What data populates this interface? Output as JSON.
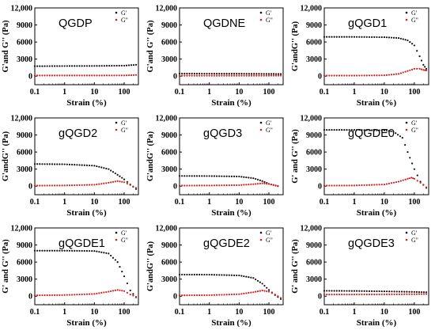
{
  "colors": {
    "gp": "#111111",
    "gpp": "#d62020",
    "axis": "#000000"
  },
  "chart_data": [
    {
      "type": "scatter",
      "title": "QGDP",
      "ylabel": "G'and G'' (Pa)",
      "xlabel": "Strain (%)",
      "xscale": "log",
      "xlim": [
        0.1,
        300
      ],
      "ylim": [
        -1500,
        12000
      ],
      "xticks": [
        "0.1",
        "1",
        "10",
        "100"
      ],
      "yticks": [
        "0",
        "3000",
        "6000",
        "9000",
        "12,000"
      ],
      "legend": [
        "G'",
        "G''"
      ],
      "legend_position": "top-right",
      "series": [
        {
          "name": "G'",
          "kind": "gp",
          "points": [
            [
              0.1,
              1750
            ],
            [
              1,
              1780
            ],
            [
              10,
              1800
            ],
            [
              100,
              1850
            ],
            [
              250,
              2000
            ]
          ]
        },
        {
          "name": "G''",
          "kind": "gpp",
          "points": [
            [
              0.1,
              120
            ],
            [
              1,
              120
            ],
            [
              10,
              120
            ],
            [
              100,
              130
            ],
            [
              250,
              200
            ]
          ]
        }
      ]
    },
    {
      "type": "scatter",
      "title": "QGDNE",
      "ylabel": "G'and G'' (Pa)",
      "xlabel": "Strain (%)",
      "xscale": "log",
      "xlim": [
        0.1,
        300
      ],
      "ylim": [
        -1500,
        12000
      ],
      "xticks": [
        "0.1",
        "1",
        "10",
        "100"
      ],
      "yticks": [
        "0",
        "3000",
        "6000",
        "9000",
        "12,000"
      ],
      "legend": [
        "G'",
        "G''"
      ],
      "legend_position": "top-right",
      "series": [
        {
          "name": "G'",
          "kind": "gp",
          "points": [
            [
              0.1,
              450
            ],
            [
              1,
              440
            ],
            [
              10,
              430
            ],
            [
              100,
              400
            ],
            [
              250,
              380
            ]
          ]
        },
        {
          "name": "G''",
          "kind": "gpp",
          "points": [
            [
              0.1,
              80
            ],
            [
              1,
              80
            ],
            [
              10,
              80
            ],
            [
              100,
              90
            ],
            [
              250,
              100
            ]
          ]
        }
      ]
    },
    {
      "type": "scatter",
      "title": "gQGD1",
      "ylabel": "G'andG'' (Pa)",
      "xlabel": "Strain (%)",
      "xscale": "log",
      "xlim": [
        0.1,
        300
      ],
      "ylim": [
        -1500,
        12000
      ],
      "xticks": [
        "0.1",
        "1",
        "10",
        "100"
      ],
      "yticks": [
        "0",
        "3000",
        "6000",
        "9000",
        "12,000"
      ],
      "legend": [
        "G'",
        "G''"
      ],
      "legend_position": "top-right",
      "series": [
        {
          "name": "G'",
          "kind": "gp",
          "points": [
            [
              0.1,
              6900
            ],
            [
              1,
              6900
            ],
            [
              10,
              6850
            ],
            [
              30,
              6700
            ],
            [
              60,
              6300
            ],
            [
              100,
              5400
            ],
            [
              150,
              3500
            ],
            [
              200,
              2000
            ],
            [
              250,
              1300
            ]
          ]
        },
        {
          "name": "G''",
          "kind": "gpp",
          "points": [
            [
              0.1,
              100
            ],
            [
              1,
              100
            ],
            [
              10,
              150
            ],
            [
              30,
              400
            ],
            [
              60,
              900
            ],
            [
              100,
              1300
            ],
            [
              150,
              1300
            ],
            [
              200,
              1100
            ],
            [
              250,
              1000
            ]
          ]
        }
      ]
    },
    {
      "type": "scatter",
      "title": "gQGD2",
      "ylabel": "G'andG'' (Pa)",
      "xlabel": "Strain (%)",
      "xscale": "log",
      "xlim": [
        0.1,
        300
      ],
      "ylim": [
        -1500,
        12000
      ],
      "xticks": [
        "0.1",
        "1",
        "10",
        "100"
      ],
      "yticks": [
        "0",
        "3000",
        "6000",
        "9000",
        "12,000"
      ],
      "legend": [
        "G'",
        "G''"
      ],
      "legend_position": "top-right",
      "series": [
        {
          "name": "G'",
          "kind": "gp",
          "points": [
            [
              0.1,
              3900
            ],
            [
              1,
              3850
            ],
            [
              10,
              3600
            ],
            [
              30,
              3000
            ],
            [
              60,
              2000
            ],
            [
              100,
              1200
            ],
            [
              160,
              300
            ],
            [
              250,
              -500
            ]
          ]
        },
        {
          "name": "G''",
          "kind": "gpp",
          "points": [
            [
              0.1,
              100
            ],
            [
              1,
              120
            ],
            [
              10,
              250
            ],
            [
              30,
              600
            ],
            [
              60,
              900
            ],
            [
              100,
              700
            ],
            [
              160,
              200
            ],
            [
              250,
              -300
            ]
          ]
        }
      ]
    },
    {
      "type": "scatter",
      "title": "gQGD3",
      "ylabel": "G'andG'' (Pa)",
      "xlabel": "Strain (%)",
      "xscale": "log",
      "xlim": [
        0.1,
        300
      ],
      "ylim": [
        -1500,
        12000
      ],
      "xticks": [
        "0.1",
        "1",
        "10",
        "100"
      ],
      "yticks": [
        "0",
        "3000",
        "6000",
        "9000",
        "12,000"
      ],
      "legend": [
        "G'",
        "G''"
      ],
      "legend_position": "top-right",
      "series": [
        {
          "name": "G'",
          "kind": "gp",
          "points": [
            [
              0.1,
              1800
            ],
            [
              1,
              1780
            ],
            [
              10,
              1700
            ],
            [
              30,
              1400
            ],
            [
              60,
              900
            ],
            [
              100,
              400
            ],
            [
              200,
              0
            ]
          ]
        },
        {
          "name": "G''",
          "kind": "gpp",
          "points": [
            [
              0.1,
              100
            ],
            [
              1,
              120
            ],
            [
              10,
              180
            ],
            [
              30,
              350
            ],
            [
              60,
              500
            ],
            [
              100,
              400
            ],
            [
              200,
              50
            ]
          ]
        }
      ]
    },
    {
      "type": "scatter",
      "title": "gQGDE0",
      "ylabel": "G' and G'' (Pa)",
      "xlabel": "Strain (%)",
      "xscale": "log",
      "xlim": [
        0.1,
        300
      ],
      "ylim": [
        -1500,
        12000
      ],
      "xticks": [
        "0.1",
        "1",
        "10",
        "100"
      ],
      "yticks": [
        "0",
        "3000",
        "6000",
        "9000",
        "12,000"
      ],
      "legend": [
        "G'",
        "G''"
      ],
      "legend_position": "top-right",
      "series": [
        {
          "name": "G'",
          "kind": "gp",
          "points": [
            [
              0.1,
              9900
            ],
            [
              1,
              9900
            ],
            [
              10,
              9800
            ],
            [
              20,
              9600
            ],
            [
              40,
              8500
            ],
            [
              60,
              6000
            ],
            [
              100,
              3000
            ],
            [
              160,
              800
            ],
            [
              250,
              -300
            ]
          ]
        },
        {
          "name": "G''",
          "kind": "gpp",
          "points": [
            [
              0.1,
              100
            ],
            [
              1,
              120
            ],
            [
              10,
              300
            ],
            [
              30,
              800
            ],
            [
              60,
              1300
            ],
            [
              80,
              1500
            ],
            [
              100,
              1300
            ],
            [
              160,
              600
            ],
            [
              250,
              -200
            ]
          ]
        }
      ]
    },
    {
      "type": "scatter",
      "title": "gQGDE1",
      "ylabel": "G' and G'' (Pa)",
      "xlabel": "Strain (%)",
      "xscale": "log",
      "xlim": [
        0.1,
        300
      ],
      "ylim": [
        -1500,
        12000
      ],
      "xticks": [
        "0.1",
        "1",
        "10",
        "100"
      ],
      "yticks": [
        "0",
        "3000",
        "6000",
        "9000",
        "12,000"
      ],
      "legend": [
        "G'",
        "G''"
      ],
      "legend_position": "top-right",
      "series": [
        {
          "name": "G'",
          "kind": "gp",
          "points": [
            [
              0.1,
              8000
            ],
            [
              1,
              8000
            ],
            [
              10,
              7950
            ],
            [
              30,
              7500
            ],
            [
              60,
              6000
            ],
            [
              100,
              3500
            ],
            [
              160,
              1000
            ],
            [
              250,
              -200
            ]
          ]
        },
        {
          "name": "G''",
          "kind": "gpp",
          "points": [
            [
              0.1,
              150
            ],
            [
              1,
              200
            ],
            [
              10,
              400
            ],
            [
              30,
              800
            ],
            [
              60,
              1100
            ],
            [
              100,
              900
            ],
            [
              160,
              300
            ],
            [
              250,
              -100
            ]
          ]
        }
      ]
    },
    {
      "type": "scatter",
      "title": "gQGDE2",
      "ylabel": "G'andG'' (Pa)",
      "xlabel": "Strain (%)",
      "xscale": "log",
      "xlim": [
        0.1,
        300
      ],
      "ylim": [
        -1500,
        12000
      ],
      "xticks": [
        "0.1",
        "1",
        "10",
        "100"
      ],
      "yticks": [
        "0",
        "3000",
        "6000",
        "9000",
        "12,000"
      ],
      "legend": [
        "G'",
        "G''"
      ],
      "legend_position": "top-right",
      "series": [
        {
          "name": "G'",
          "kind": "gp",
          "points": [
            [
              0.1,
              3800
            ],
            [
              1,
              3780
            ],
            [
              10,
              3650
            ],
            [
              30,
              3200
            ],
            [
              60,
              2200
            ],
            [
              100,
              1100
            ],
            [
              160,
              200
            ],
            [
              250,
              -500
            ]
          ]
        },
        {
          "name": "G''",
          "kind": "gpp",
          "points": [
            [
              0.1,
              150
            ],
            [
              1,
              180
            ],
            [
              10,
              350
            ],
            [
              30,
              700
            ],
            [
              60,
              1000
            ],
            [
              100,
              800
            ],
            [
              160,
              300
            ],
            [
              250,
              -300
            ]
          ]
        }
      ]
    },
    {
      "type": "scatter",
      "title": "gQGDE3",
      "ylabel": "G' and G'' (Pa)",
      "xlabel": "Strain (%)",
      "xscale": "log",
      "xlim": [
        0.1,
        300
      ],
      "ylim": [
        -1500,
        12000
      ],
      "xticks": [
        "0.1",
        "1",
        "10",
        "100"
      ],
      "yticks": [
        "0",
        "3000",
        "6000",
        "9000",
        "12,000"
      ],
      "legend": [
        "G'",
        "G''"
      ],
      "legend_position": "top-right",
      "series": [
        {
          "name": "G'",
          "kind": "gp",
          "points": [
            [
              0.1,
              950
            ],
            [
              1,
              920
            ],
            [
              10,
              850
            ],
            [
              100,
              750
            ],
            [
              250,
              700
            ]
          ]
        },
        {
          "name": "G''",
          "kind": "gpp",
          "points": [
            [
              0.1,
              300
            ],
            [
              1,
              300
            ],
            [
              10,
              320
            ],
            [
              100,
              350
            ],
            [
              250,
              380
            ]
          ]
        }
      ]
    }
  ]
}
